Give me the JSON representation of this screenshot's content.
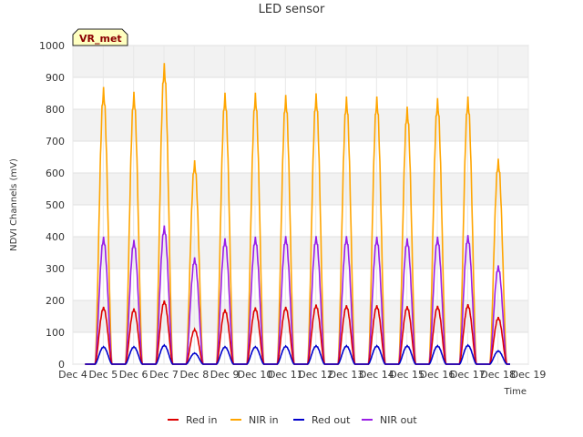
{
  "chart_data": {
    "type": "line",
    "title": "LED sensor",
    "xlabel": "Time",
    "ylabel": "NDVI Channels (mV)",
    "ylim": [
      0,
      1000
    ],
    "xlim": [
      4,
      19
    ],
    "y_ticks": [
      0,
      100,
      200,
      300,
      400,
      500,
      600,
      700,
      800,
      900,
      1000
    ],
    "x_ticks": [
      {
        "value": 4,
        "label": "Dec 4"
      },
      {
        "value": 5,
        "label": "Dec 5"
      },
      {
        "value": 6,
        "label": "Dec 6"
      },
      {
        "value": 7,
        "label": "Dec 7"
      },
      {
        "value": 8,
        "label": "Dec 8"
      },
      {
        "value": 9,
        "label": "Dec 9"
      },
      {
        "value": 10,
        "label": "Dec 10"
      },
      {
        "value": 11,
        "label": "Dec 11"
      },
      {
        "value": 12,
        "label": "Dec 12"
      },
      {
        "value": 13,
        "label": "Dec 13"
      },
      {
        "value": 14,
        "label": "Dec 14"
      },
      {
        "value": 15,
        "label": "Dec 15"
      },
      {
        "value": 16,
        "label": "Dec 16"
      },
      {
        "value": 17,
        "label": "Dec 17"
      },
      {
        "value": 18,
        "label": "Dec 18"
      },
      {
        "value": 19,
        "label": "Dec 19"
      }
    ],
    "data_start": 4.4,
    "data_end": 18.4,
    "daily_peaks": {
      "days": [
        5,
        6,
        7,
        8,
        9,
        10,
        11,
        12,
        13,
        14,
        15,
        16,
        17,
        18
      ],
      "red_in": [
        180,
        175,
        200,
        110,
        172,
        178,
        180,
        187,
        185,
        185,
        182,
        183,
        188,
        148
      ],
      "nir_in": [
        870,
        855,
        945,
        640,
        852,
        852,
        845,
        850,
        840,
        840,
        808,
        835,
        840,
        645
      ],
      "red_out": [
        55,
        55,
        60,
        35,
        55,
        55,
        57,
        58,
        58,
        58,
        58,
        58,
        60,
        42
      ],
      "nir_out": [
        400,
        390,
        435,
        335,
        395,
        400,
        402,
        402,
        402,
        400,
        395,
        400,
        405,
        310
      ]
    },
    "series": [
      {
        "name": "Red in",
        "color": "#dd0000"
      },
      {
        "name": "NIR in",
        "color": "#ffa500"
      },
      {
        "name": "Red out",
        "color": "#0000cc"
      },
      {
        "name": "NIR out",
        "color": "#9a1ee6"
      }
    ],
    "badge": "VR_met",
    "grid": true,
    "legend_position": "bottom-center"
  }
}
